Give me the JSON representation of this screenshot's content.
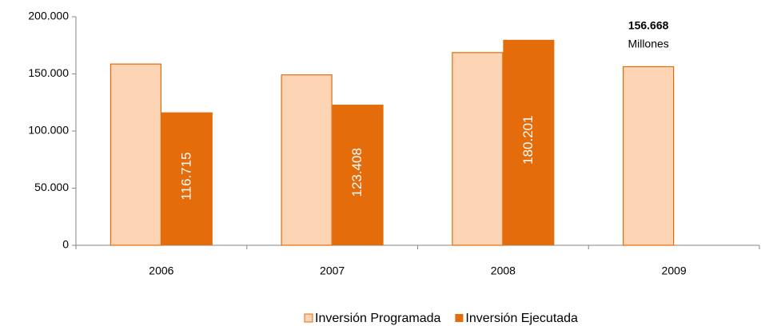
{
  "chart_data": {
    "type": "bar",
    "categories": [
      "2006",
      "2007",
      "2008",
      "2009"
    ],
    "series": [
      {
        "name": "Inversión Programada",
        "color": "#fdd5b4",
        "stroke": "#e46c0a",
        "values": [
          159000,
          149500,
          169000,
          156668
        ],
        "value_labels": [
          null,
          null,
          null,
          "156.668"
        ]
      },
      {
        "name": "Inversión Ejecutada",
        "color": "#e46c0a",
        "values": [
          116715,
          123408,
          180201,
          null
        ],
        "value_labels": [
          "116.715",
          "123.408",
          "180.201",
          null
        ]
      }
    ],
    "annotation": "Millones",
    "ylim": [
      0,
      200000
    ],
    "yticks": [
      0,
      {
        "value": 50000,
        "label": "50.000"
      },
      {
        "value": 100000,
        "label": "100.000"
      },
      {
        "value": 150000,
        "label": "150.000"
      },
      {
        "value": 200000,
        "label": "200.000"
      }
    ],
    "grid": false,
    "legend": "bottom"
  }
}
